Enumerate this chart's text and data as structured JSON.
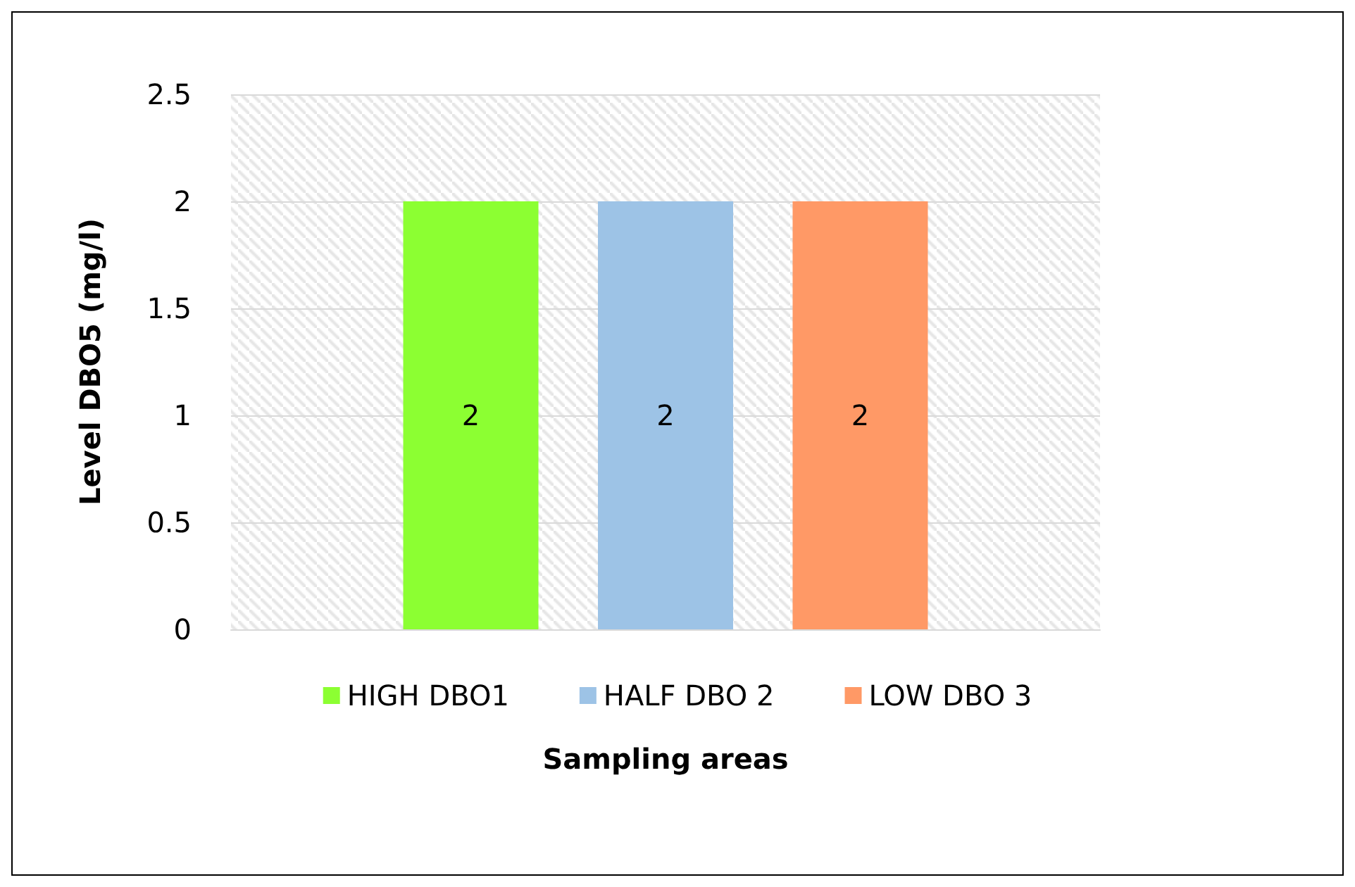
{
  "chart_data": {
    "type": "bar",
    "xlabel": "Sampling areas",
    "ylabel": "Level DBO5 (mg/l)",
    "categories": [
      null
    ],
    "series": [
      {
        "name": "HIGH DBO1",
        "color": "#8cff32",
        "values": [
          2
        ]
      },
      {
        "name": "HALF DBO 2",
        "color": "#9dc3e6",
        "values": [
          2
        ]
      },
      {
        "name": "LOW DBO 3",
        "color": "#ff9966",
        "values": [
          2
        ]
      }
    ],
    "ylim": [
      0,
      2.5
    ],
    "yticks": [
      0,
      0.5,
      1,
      1.5,
      2,
      2.5
    ],
    "grid": "y",
    "legend": "bottom",
    "data_labels": true
  }
}
